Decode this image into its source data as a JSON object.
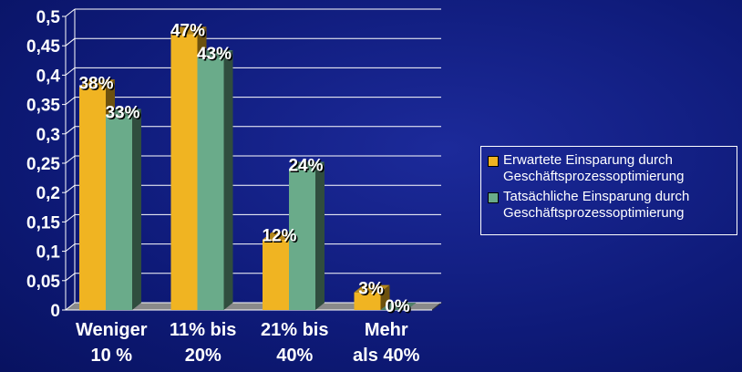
{
  "chart_data": {
    "type": "bar3d",
    "categories": [
      "Weniger\n10 %",
      "11% bis\n20%",
      "21% bis\n40%",
      "Mehr\nals 40%"
    ],
    "series": [
      {
        "name": "Erwartete Einsparung durch\nGeschäftsprozessoptimierung",
        "color": "#f0b422",
        "values": [
          0.38,
          0.47,
          0.12,
          0.03
        ],
        "value_labels": [
          "38%",
          "47%",
          "12%",
          "3%"
        ]
      },
      {
        "name": "Tatsächliche Einsparung durch\nGeschäftsprozessoptimierung",
        "color": "#6aab8a",
        "values": [
          0.33,
          0.43,
          0.24,
          0
        ],
        "value_labels": [
          "33%",
          "43%",
          "24%",
          "0%"
        ]
      }
    ],
    "ylim": [
      0,
      0.5
    ],
    "yticks": [
      0,
      {
        "value": 0.05,
        "label": "0,05"
      },
      {
        "value": 0.1,
        "label": "0,1"
      },
      {
        "value": 0.15,
        "label": "0,15"
      },
      {
        "value": 0.2,
        "label": "0,2"
      },
      {
        "value": 0.25,
        "label": "0,25"
      },
      {
        "value": 0.3,
        "label": "0,3"
      },
      {
        "value": 0.35,
        "label": "0,35"
      },
      {
        "value": 0.4,
        "label": "0,4"
      },
      {
        "value": 0.45,
        "label": "0,45"
      },
      {
        "value": 0.5,
        "label": "0,5"
      }
    ],
    "grid": true,
    "legend": "right"
  }
}
